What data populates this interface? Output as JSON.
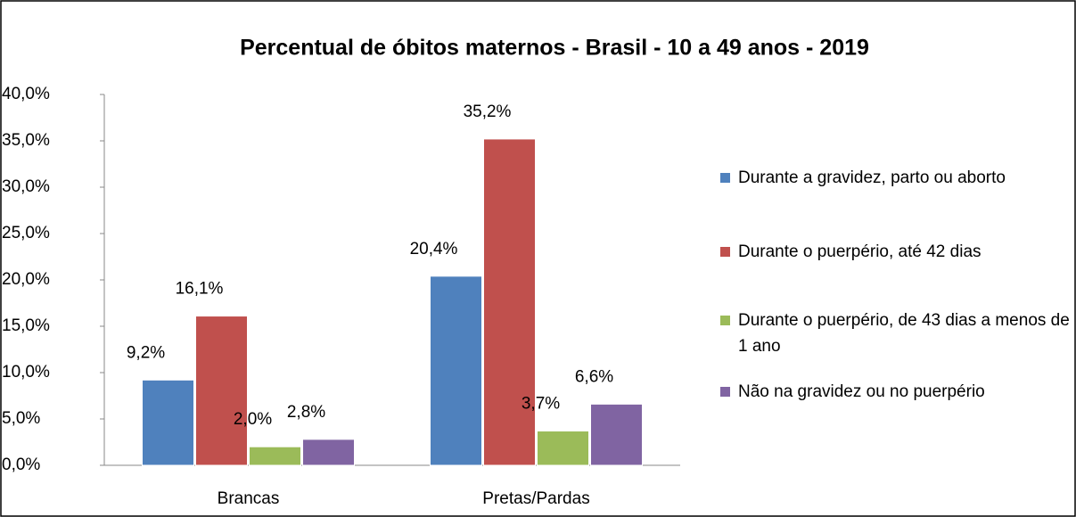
{
  "chart_data": {
    "type": "bar",
    "title": "Percentual de  óbitos maternos - Brasil - 10 a 49 anos - 2019",
    "categories": [
      "Brancas",
      "Pretas/Pardas"
    ],
    "series": [
      {
        "name": "Durante a gravidez, parto ou aborto",
        "color": "#4f81bd",
        "values": [
          9.2,
          20.4
        ],
        "value_labels": [
          "9,2%",
          "20,4%"
        ]
      },
      {
        "name": "Durante o puerpério, até 42 dias",
        "color": "#c0504d",
        "values": [
          16.1,
          35.2
        ],
        "value_labels": [
          "16,1%",
          "35,2%"
        ]
      },
      {
        "name": "Durante o puerpério, de 43 dias a menos de 1 ano",
        "color": "#9bbb59",
        "values": [
          2.0,
          3.7
        ],
        "value_labels": [
          "2,0%",
          "3,7%"
        ]
      },
      {
        "name": "Não na gravidez ou no puerpério",
        "color": "#8064a2",
        "values": [
          2.8,
          6.6
        ],
        "value_labels": [
          "2,8%",
          "6,6%"
        ]
      }
    ],
    "ylim": [
      0,
      40
    ],
    "yticks": [
      {
        "value": 0,
        "label": "0,0%"
      },
      {
        "value": 5,
        "label": "5,0%"
      },
      {
        "value": 10,
        "label": "10,0%"
      },
      {
        "value": 15,
        "label": "15,0%"
      },
      {
        "value": 20,
        "label": "20,0%"
      },
      {
        "value": 25,
        "label": "25,0%"
      },
      {
        "value": 30,
        "label": "30,0%"
      },
      {
        "value": 35,
        "label": "35,0%"
      },
      {
        "value": 40,
        "label": "40,0%"
      }
    ],
    "legend": "right"
  }
}
